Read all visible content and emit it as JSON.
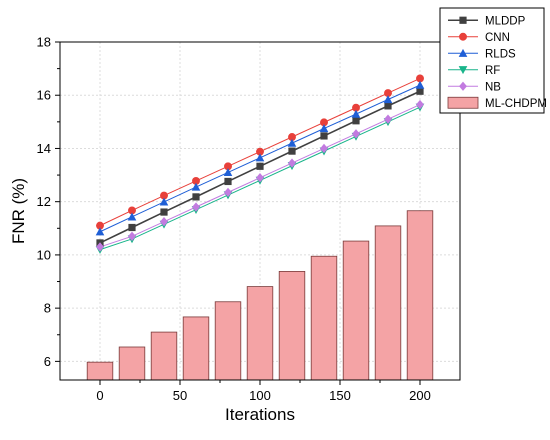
{
  "chart_data": {
    "type": "bar+line",
    "xlabel": "Iterations",
    "ylabel": "FNR (%)",
    "x": [
      0,
      20,
      40,
      60,
      80,
      100,
      120,
      140,
      160,
      180,
      200
    ],
    "xlim": [
      -25,
      225
    ],
    "ylim": [
      5.3,
      18
    ],
    "xticks": [
      0,
      50,
      100,
      150,
      200
    ],
    "yticks": [
      6,
      8,
      10,
      12,
      14,
      16,
      18
    ],
    "grid": true,
    "legend_position": "top-right",
    "series": [
      {
        "name": "MLDDP",
        "kind": "line",
        "marker": "square",
        "color": "#404040",
        "values": [
          10.45,
          11.03,
          11.61,
          12.18,
          12.76,
          13.33,
          13.9,
          14.47,
          15.04,
          15.6,
          16.15
        ]
      },
      {
        "name": "CNN",
        "kind": "line",
        "marker": "circle",
        "color": "#e8403a",
        "values": [
          11.1,
          11.67,
          12.23,
          12.78,
          13.33,
          13.88,
          14.43,
          14.98,
          15.53,
          16.08,
          16.63
        ]
      },
      {
        "name": "RLDS",
        "kind": "line",
        "marker": "triangle-up",
        "color": "#1f5fd6",
        "values": [
          10.87,
          11.43,
          11.99,
          12.55,
          13.1,
          13.65,
          14.2,
          14.75,
          15.29,
          15.84,
          16.38
        ]
      },
      {
        "name": "RF",
        "kind": "line",
        "marker": "triangle-down",
        "color": "#19b48a",
        "values": [
          10.2,
          10.6,
          11.15,
          11.7,
          12.25,
          12.8,
          13.35,
          13.9,
          14.45,
          15.0,
          15.55
        ]
      },
      {
        "name": "NB",
        "kind": "line",
        "marker": "diamond",
        "color": "#c27be0",
        "values": [
          10.3,
          10.7,
          11.25,
          11.8,
          12.35,
          12.9,
          13.45,
          14.0,
          14.55,
          15.1,
          15.65
        ]
      },
      {
        "name": "ML-CHDPM",
        "kind": "bar",
        "color": "#f4a3a5",
        "values": [
          5.97,
          6.54,
          7.1,
          7.67,
          8.24,
          8.81,
          9.38,
          9.95,
          10.52,
          11.09,
          11.66
        ]
      }
    ]
  }
}
